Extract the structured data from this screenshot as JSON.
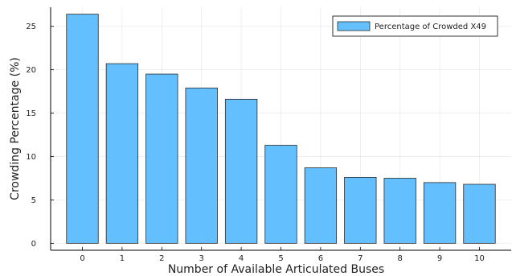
{
  "chart_data": {
    "type": "bar",
    "categories": [
      "0",
      "1",
      "2",
      "3",
      "4",
      "5",
      "6",
      "7",
      "8",
      "9",
      "10"
    ],
    "series": [
      {
        "name": "Percentage of Crowded X49",
        "values": [
          26.4,
          20.7,
          19.5,
          17.9,
          16.6,
          11.3,
          8.7,
          7.6,
          7.5,
          7.0,
          6.8
        ],
        "color": "#64bfff",
        "edge_color": "#2b2b2b"
      }
    ],
    "xlabel": "Number of Available Articulated Buses",
    "ylabel": "Crowding Percentage (%)",
    "yticks": [
      0,
      5,
      10,
      15,
      20,
      25
    ],
    "ylim": [
      -0.8,
      27.2
    ],
    "grid": true,
    "legend_position": "top-right"
  }
}
